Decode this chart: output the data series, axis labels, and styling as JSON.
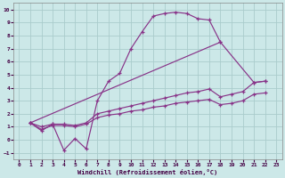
{
  "xlabel": "Windchill (Refroidissement éolien,°C)",
  "bg_color": "#cce8e8",
  "grid_color": "#aacccc",
  "line_color": "#883388",
  "xlim": [
    -0.5,
    23.5
  ],
  "ylim": [
    -1.5,
    10.5
  ],
  "xticks": [
    0,
    1,
    2,
    3,
    4,
    5,
    6,
    7,
    8,
    9,
    10,
    11,
    12,
    13,
    14,
    15,
    16,
    17,
    18,
    19,
    20,
    21,
    22,
    23
  ],
  "yticks": [
    -1,
    0,
    1,
    2,
    3,
    4,
    5,
    6,
    7,
    8,
    9,
    10
  ],
  "line1_x": [
    1,
    2,
    3,
    4,
    5,
    6,
    7,
    8,
    9,
    10,
    11,
    12,
    13,
    14,
    15,
    16,
    17,
    18
  ],
  "line1_y": [
    1.3,
    0.7,
    1.2,
    -0.8,
    0.1,
    -0.7,
    3.0,
    4.5,
    5.1,
    7.0,
    8.3,
    9.5,
    9.7,
    9.8,
    9.7,
    9.3,
    9.2,
    7.5
  ],
  "line2_x": [
    1,
    18,
    21,
    22
  ],
  "line2_y": [
    1.3,
    7.5,
    4.4,
    4.5
  ],
  "line3_x": [
    1,
    2,
    3,
    4,
    5,
    6,
    7,
    8,
    9,
    10,
    11,
    12,
    13,
    14,
    15,
    16,
    17,
    18,
    19,
    20,
    21,
    22
  ],
  "line3_y": [
    1.3,
    1.0,
    1.2,
    1.2,
    1.1,
    1.3,
    2.0,
    2.2,
    2.4,
    2.6,
    2.8,
    3.0,
    3.2,
    3.4,
    3.6,
    3.7,
    3.9,
    3.3,
    3.5,
    3.7,
    4.4,
    4.5
  ],
  "line4_x": [
    1,
    2,
    3,
    4,
    5,
    6,
    7,
    8,
    9,
    10,
    11,
    12,
    13,
    14,
    15,
    16,
    17,
    18,
    19,
    20,
    21,
    22
  ],
  "line4_y": [
    1.3,
    0.8,
    1.1,
    1.1,
    1.0,
    1.2,
    1.7,
    1.9,
    2.0,
    2.2,
    2.3,
    2.5,
    2.6,
    2.8,
    2.9,
    3.0,
    3.1,
    2.7,
    2.8,
    3.0,
    3.5,
    3.6
  ]
}
